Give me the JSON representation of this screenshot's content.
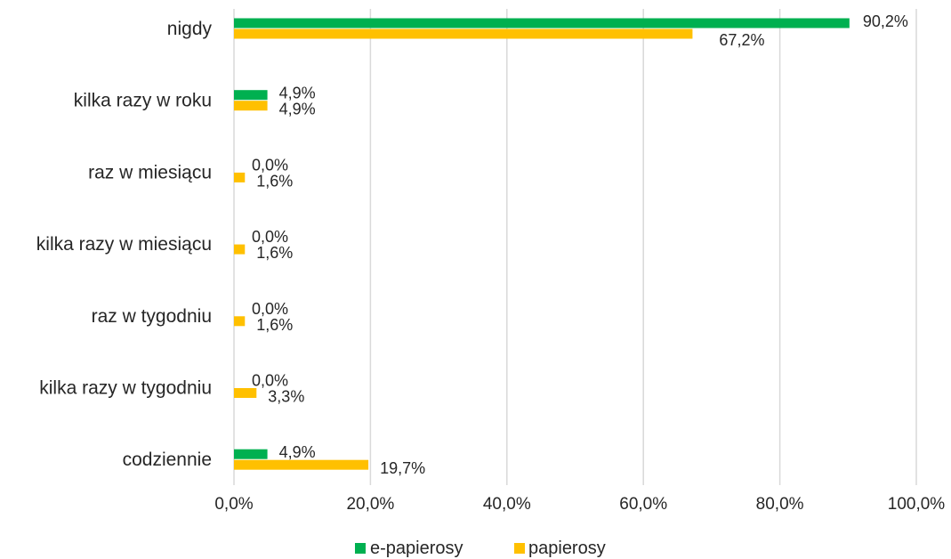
{
  "chart_data": {
    "type": "bar",
    "orientation": "horizontal",
    "title": "",
    "xlabel": "",
    "ylabel": "",
    "categories": [
      "nigdy",
      "kilka razy w roku",
      "raz w miesiącu",
      "kilka razy w miesiącu",
      "raz w tygodniu",
      "kilka razy w tygodniu",
      "codziennie"
    ],
    "series": [
      {
        "name": "e-papierosy",
        "color": "#00b050",
        "values": [
          90.2,
          4.9,
          0.0,
          0.0,
          0.0,
          0.0,
          4.9
        ],
        "labels": [
          "90,2%",
          "4,9%",
          "0,0%",
          "0,0%",
          "0,0%",
          "0,0%",
          "4,9%"
        ]
      },
      {
        "name": "papierosy",
        "color": "#ffc000",
        "values": [
          67.2,
          4.9,
          1.6,
          1.6,
          1.6,
          3.3,
          19.7
        ],
        "labels": [
          "67,2%",
          "4,9%",
          "1,6%",
          "1,6%",
          "1,6%",
          "3,3%",
          "19,7%"
        ]
      }
    ],
    "xlim": [
      0,
      100
    ],
    "x_ticks": [
      0,
      20,
      40,
      60,
      80,
      100
    ],
    "x_tick_labels": [
      "0,0%",
      "20,0%",
      "40,0%",
      "60,0%",
      "80,0%",
      "100,0%"
    ],
    "grid": true,
    "grid_color": "#d9d9d9",
    "legend": "bottom-center"
  }
}
